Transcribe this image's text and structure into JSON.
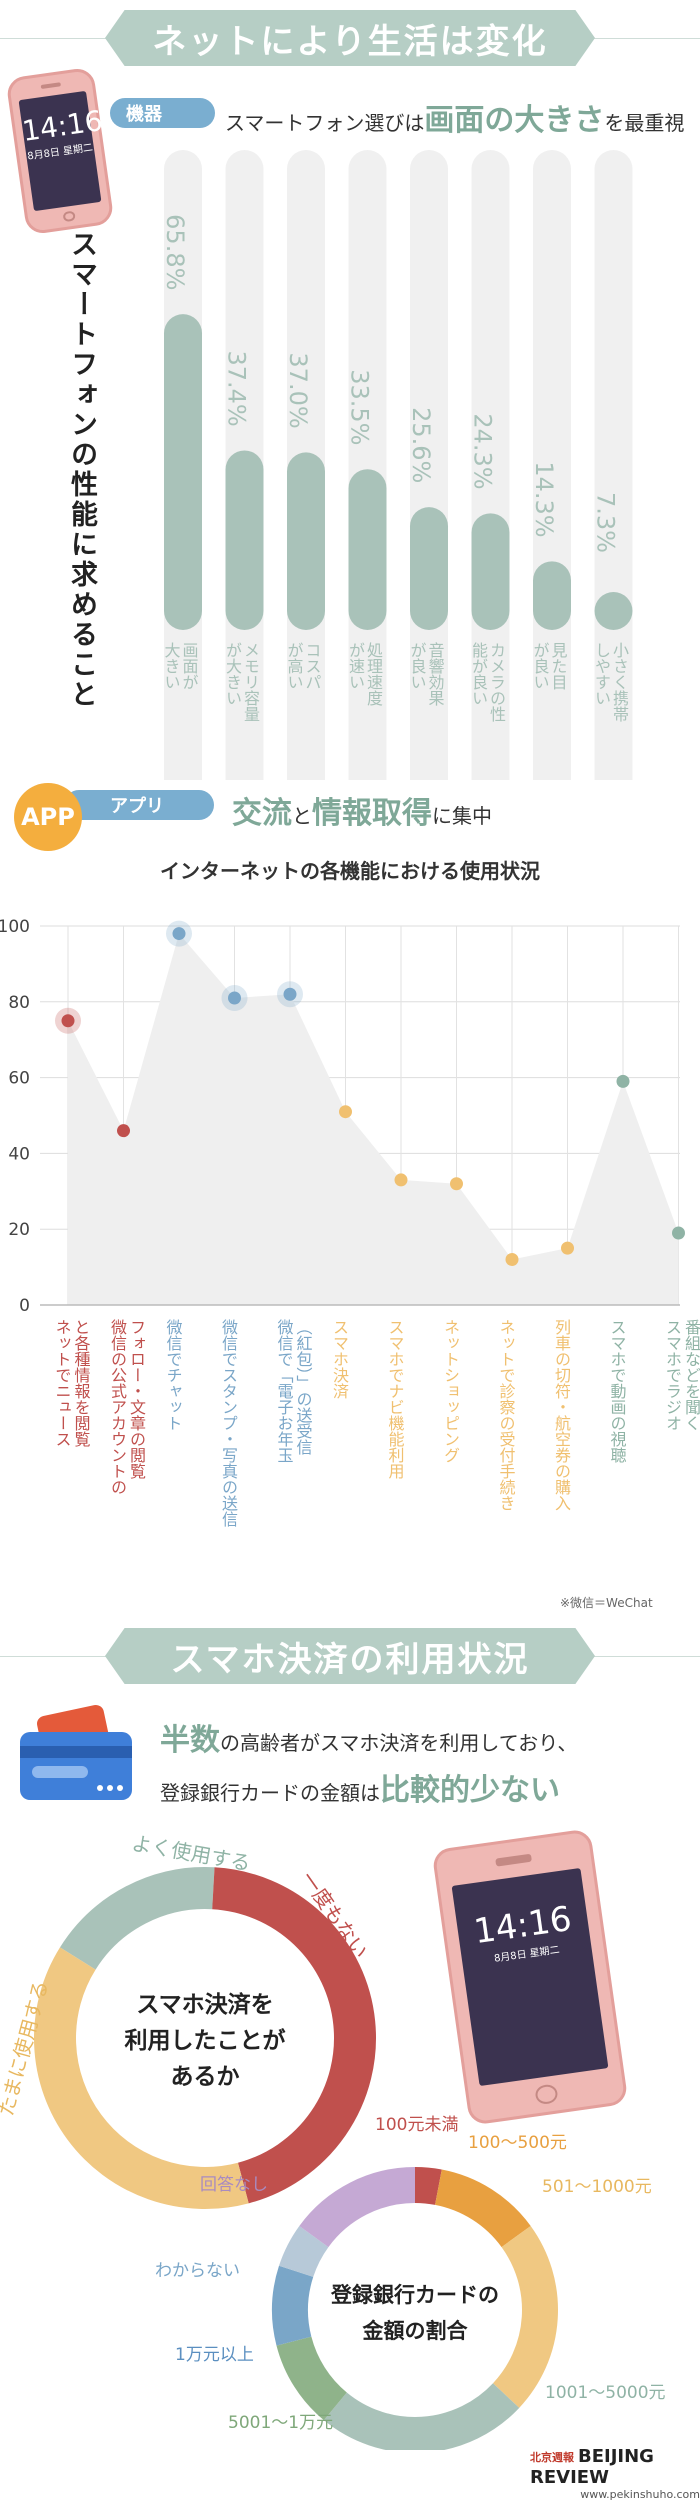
{
  "section1": {
    "banner": "ネットにより生活は変化",
    "phone_time": "14:16",
    "phone_date": "8月8日 星期二",
    "pill": "機器",
    "headline_pre": "スマートフォン選びは",
    "headline_em": "画面の大きさ",
    "headline_post": "を最重視",
    "vertical_title": "スマートフォンの性能に求めること"
  },
  "section2": {
    "badge": "APP",
    "pill": "アプリ",
    "headline_em1": "交流",
    "headline_mid": "と",
    "headline_em2": "情報取得",
    "headline_post": "に集中",
    "note": "※微信＝WeChat"
  },
  "section3": {
    "banner": "スマホ決済の利用状況",
    "head1_em": "半数",
    "head1_post": "の高齢者がスマホ決済を利用しており、",
    "head2_pre": "登録銀行カードの金額は",
    "head2_em": "比較的少ない",
    "phone_time": "14:16",
    "phone_date": "8月8日 星期二"
  },
  "footer": {
    "brand": "BEIJING REVIEW",
    "url": "www.pekinshuho.com",
    "chinese": "北京週報"
  },
  "colors": {
    "bar_track": "#f0f0f0",
    "bar_fill": "#a9c2b9",
    "accent": "#7fa898",
    "red": "#c0504d",
    "blue": "#7aa6c8",
    "yellow": "#f0c070",
    "green": "#8fb3a5",
    "purple": "#c5a9d4",
    "orange": "#e8a040",
    "pill_blue": "#7aaed0"
  },
  "chart_data": [
    {
      "type": "bar",
      "categories": [
        "画面が大きい",
        "メモリ容量が大きい",
        "コスパが高い",
        "処理速度が速い",
        "音響効果が良い",
        "カメラの性能が良い",
        "見た目が良い",
        "小さく携帯しやすい"
      ],
      "values": [
        65.8,
        37.4,
        37.0,
        33.5,
        25.6,
        24.3,
        14.3,
        7.3
      ],
      "value_labels": [
        "65.8%",
        "37.4%",
        "37.0%",
        "33.5%",
        "25.6%",
        "24.3%",
        "14.3%",
        "7.3%"
      ],
      "title": "スマートフォンの性能に求めること",
      "ylim": [
        0,
        100
      ]
    },
    {
      "type": "line",
      "title": "インターネットの各機能における使用状況",
      "categories": [
        "ネットでニュースと各種情報を閲覧",
        "微信の公式アカウントのフォロー・文章の閲覧",
        "微信でチャット",
        "微信でスタンプ・写真の送信",
        "微信で「電子お年玉（紅包）」の送受信",
        "スマホ決済",
        "スマホでナビ機能利用",
        "ネットショッピング",
        "ネットで診察の受付手続き",
        "列車の切符・航空券の購入",
        "スマホで動画の視聴",
        "スマホでラジオ番組などを聞く"
      ],
      "values": [
        75,
        46,
        98,
        81,
        82,
        51,
        33,
        32,
        12,
        15,
        59,
        19
      ],
      "colors": [
        "#c0504d",
        "#c0504d",
        "#7aa6c8",
        "#7aa6c8",
        "#7aa6c8",
        "#f0c070",
        "#f0c070",
        "#f0c070",
        "#f0c070",
        "#f0c070",
        "#8fb3a5",
        "#8fb3a5"
      ],
      "yticks": [
        "0",
        "20",
        "40",
        "60",
        "80",
        "100"
      ],
      "ylim": [
        0,
        100
      ]
    },
    {
      "type": "pie",
      "title": "スマホ決済を利用したことがあるか",
      "labels": [
        "よく使用する",
        "一度もない",
        "たまに使用する"
      ],
      "values": [
        17,
        45,
        38
      ],
      "colors": [
        "#a9c2b9",
        "#c0504d",
        "#f0c882"
      ]
    },
    {
      "type": "pie",
      "title": "登録銀行カードの金額の割合",
      "labels": [
        "100元未満",
        "100～500元",
        "501～1000元",
        "1001～5000元",
        "5001～1万元",
        "1万元以上",
        "わからない",
        "回答なし"
      ],
      "values": [
        3,
        12,
        22,
        24,
        10,
        9,
        5,
        15
      ],
      "colors": [
        "#c0504d",
        "#e8a040",
        "#f0c882",
        "#a9c2b9",
        "#8fb38a",
        "#7aa6c8",
        "#b7c9d8",
        "#c5a9d4"
      ]
    }
  ]
}
